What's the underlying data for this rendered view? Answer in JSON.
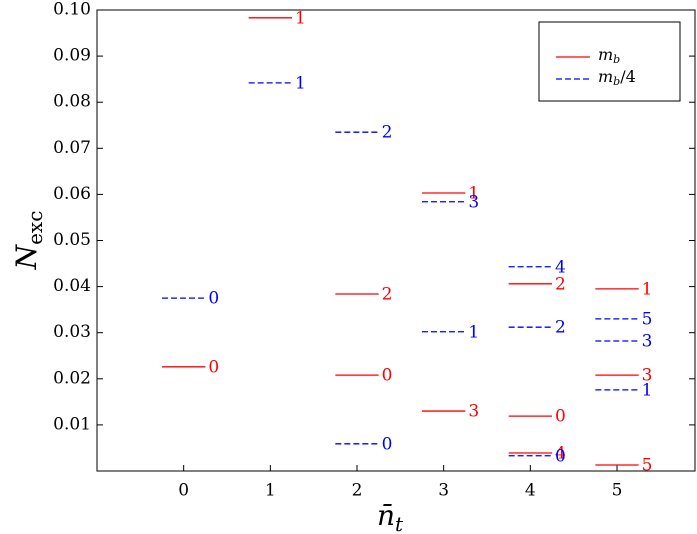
{
  "chart_data": {
    "type": "segments",
    "xlim": [
      -1,
      5.9
    ],
    "xticks": [
      0,
      1,
      2,
      3,
      4,
      5
    ],
    "ylim": [
      0,
      0.1
    ],
    "yticks": [
      0.01,
      0.02,
      0.03,
      0.04,
      0.05,
      0.06,
      0.07,
      0.08,
      0.09,
      {
        "value": 0.1,
        "label": "0.10"
      }
    ],
    "xlabel": {
      "base": "n̄",
      "sub": "t"
    },
    "ylabel": {
      "base": "N",
      "sub": "exc"
    },
    "legend": "upper right",
    "series": [
      {
        "name": {
          "base": "m",
          "sub": "b"
        },
        "color": "#ff0000",
        "linestyle": "solid",
        "x": [
          0,
          1,
          2,
          2,
          3,
          3,
          4,
          4,
          4,
          5,
          5,
          5
        ],
        "values": [
          0.0226,
          0.0983,
          0.0384,
          0.0208,
          0.0603,
          0.013,
          0.0406,
          0.0119,
          0.0039,
          0.0395,
          0.0208,
          0.0013
        ],
        "point_labels": [
          "0",
          "1",
          "2",
          "0",
          "1",
          "3",
          "2",
          "0",
          "4",
          "1",
          "3",
          "5"
        ]
      },
      {
        "name": {
          "base": "m",
          "sub": "b",
          "rest": "/4"
        },
        "color": "#0000ff",
        "linestyle": "dashed",
        "x": [
          0,
          1,
          2,
          2,
          3,
          3,
          4,
          4,
          4,
          5,
          5,
          5
        ],
        "values": [
          0.0375,
          0.0842,
          0.0735,
          0.0059,
          0.0584,
          0.0302,
          0.0443,
          0.0312,
          0.0033,
          0.033,
          0.0282,
          0.0176
        ],
        "point_labels": [
          "0",
          "1",
          "2",
          "0",
          "3",
          "1",
          "4",
          "2",
          "0",
          "5",
          "3",
          "1"
        ]
      }
    ]
  }
}
